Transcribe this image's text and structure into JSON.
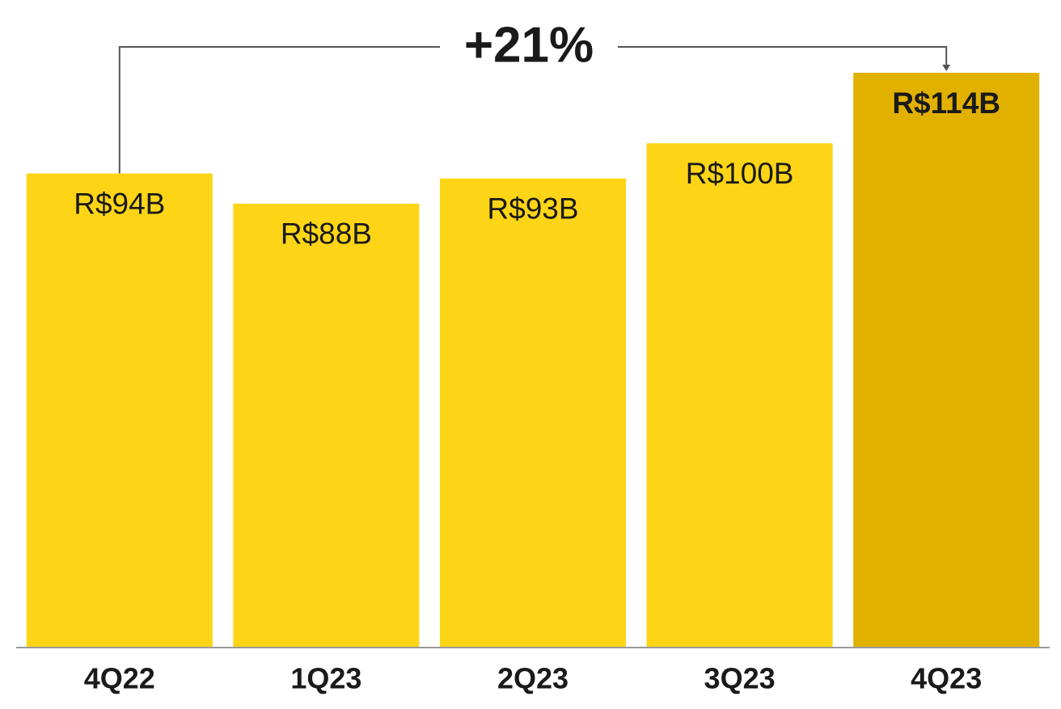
{
  "chart_data": {
    "type": "bar",
    "categories": [
      "4Q22",
      "1Q23",
      "2Q23",
      "3Q23",
      "4Q23"
    ],
    "values": [
      94,
      88,
      93,
      100,
      114
    ],
    "value_labels": [
      "R$94B",
      "R$88B",
      "R$93B",
      "R$100B",
      "R$114B"
    ],
    "colors": [
      "#fdd516",
      "#fdd516",
      "#fdd516",
      "#fdd516",
      "#e2b100"
    ],
    "annotation": "+21%"
  }
}
